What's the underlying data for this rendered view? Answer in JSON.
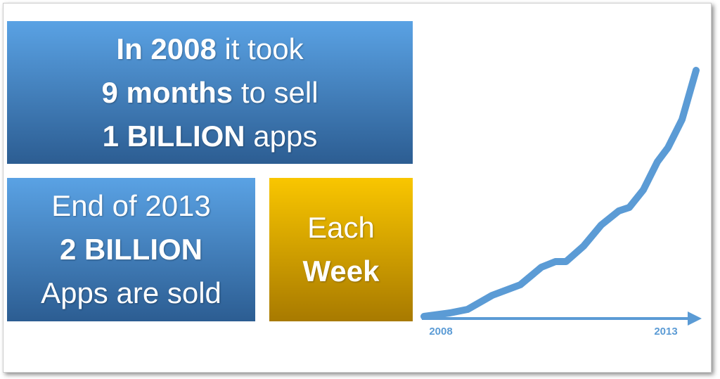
{
  "boxes": [
    {
      "lines": [
        [
          {
            "text": "In 2008",
            "bold": true
          },
          {
            "text": "it took",
            "bold": false
          }
        ],
        [
          {
            "text": "9 months",
            "bold": true
          },
          {
            "text": "to sell",
            "bold": false
          }
        ],
        [
          {
            "text": "1 BILLION",
            "bold": true
          },
          {
            "text": "apps",
            "bold": false
          }
        ]
      ]
    },
    {
      "lines": [
        [
          {
            "text": "End of 2013",
            "bold": false
          }
        ],
        [
          {
            "text": "2 BILLION",
            "bold": true
          }
        ],
        [
          {
            "text": "Apps are sold",
            "bold": false
          }
        ]
      ]
    },
    {
      "lines": [
        [
          {
            "text": "Each",
            "bold": false
          }
        ],
        [
          {
            "text": "Week",
            "bold": true
          }
        ]
      ]
    }
  ],
  "timeline": {
    "start_label": "2008",
    "end_label": "2013"
  }
}
